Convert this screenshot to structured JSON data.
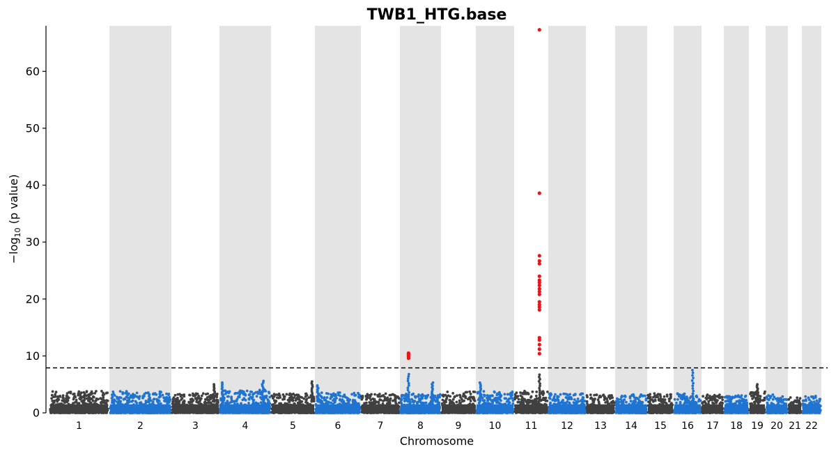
{
  "chart_data": {
    "type": "scatter",
    "title": "TWB1_HTG.base",
    "xlabel": "Chromosome",
    "ylabel_main": "−log",
    "ylabel_sub": "10",
    "ylabel_rest": " (p value)",
    "ylim": [
      0,
      68
    ],
    "yticks": [
      0,
      10,
      20,
      30,
      40,
      50,
      60
    ],
    "threshold": 7.9,
    "grid": false,
    "colors": {
      "odd": "#404040",
      "even": "#1f74d1",
      "significant": "#e8141a",
      "shade": "#e4e4e4",
      "threshold": "#000000"
    },
    "chromosomes": [
      {
        "label": "1",
        "typical_max": 4.5,
        "peaks": []
      },
      {
        "label": "2",
        "typical_max": 4.5,
        "peaks": []
      },
      {
        "label": "3",
        "typical_max": 4.0,
        "peaks": [
          {
            "pos": 0.9,
            "y": 5.0
          }
        ]
      },
      {
        "label": "4",
        "typical_max": 4.8,
        "peaks": [
          {
            "pos": 0.85,
            "y": 5.6
          },
          {
            "pos": 0.05,
            "y": 5.3
          }
        ]
      },
      {
        "label": "5",
        "typical_max": 4.0,
        "peaks": [
          {
            "pos": 0.95,
            "y": 5.5
          }
        ]
      },
      {
        "label": "6",
        "typical_max": 4.2,
        "peaks": [
          {
            "pos": 0.05,
            "y": 4.8
          }
        ]
      },
      {
        "label": "7",
        "typical_max": 4.0,
        "peaks": []
      },
      {
        "label": "8",
        "typical_max": 4.0,
        "peaks": [
          {
            "pos": 0.2,
            "y": 6.8
          },
          {
            "pos": 0.8,
            "y": 5.3
          }
        ]
      },
      {
        "label": "9",
        "typical_max": 4.5,
        "peaks": []
      },
      {
        "label": "10",
        "typical_max": 4.5,
        "peaks": [
          {
            "pos": 0.1,
            "y": 5.3
          }
        ]
      },
      {
        "label": "11",
        "typical_max": 4.5,
        "peaks": [
          {
            "pos": 0.75,
            "y": 6.7
          }
        ]
      },
      {
        "label": "12",
        "typical_max": 4.0,
        "peaks": []
      },
      {
        "label": "13",
        "typical_max": 3.8,
        "peaks": []
      },
      {
        "label": "14",
        "typical_max": 3.8,
        "peaks": []
      },
      {
        "label": "15",
        "typical_max": 4.0,
        "peaks": []
      },
      {
        "label": "16",
        "typical_max": 4.0,
        "peaks": [
          {
            "pos": 0.7,
            "y": 7.5
          }
        ]
      },
      {
        "label": "17",
        "typical_max": 3.8,
        "peaks": []
      },
      {
        "label": "18",
        "typical_max": 3.8,
        "peaks": []
      },
      {
        "label": "19",
        "typical_max": 4.5,
        "peaks": [
          {
            "pos": 0.5,
            "y": 5.0
          }
        ]
      },
      {
        "label": "20",
        "typical_max": 3.8,
        "peaks": []
      },
      {
        "label": "21",
        "typical_max": 3.3,
        "peaks": []
      },
      {
        "label": "22",
        "typical_max": 3.5,
        "peaks": []
      }
    ],
    "significant_hits": [
      {
        "chromosome": "8",
        "pos": 0.2,
        "y": [
          9.6,
          9.9,
          10.1,
          10.3,
          10.5
        ]
      },
      {
        "chromosome": "11",
        "pos": 0.75,
        "y": [
          10.4,
          11.2,
          12.0,
          12.8,
          13.2,
          18.1,
          18.6,
          19.0,
          19.5,
          20.8,
          21.3,
          21.8,
          22.4,
          22.9,
          23.3,
          24.0,
          26.2,
          26.7,
          27.6,
          38.6,
          67.3
        ]
      }
    ]
  }
}
